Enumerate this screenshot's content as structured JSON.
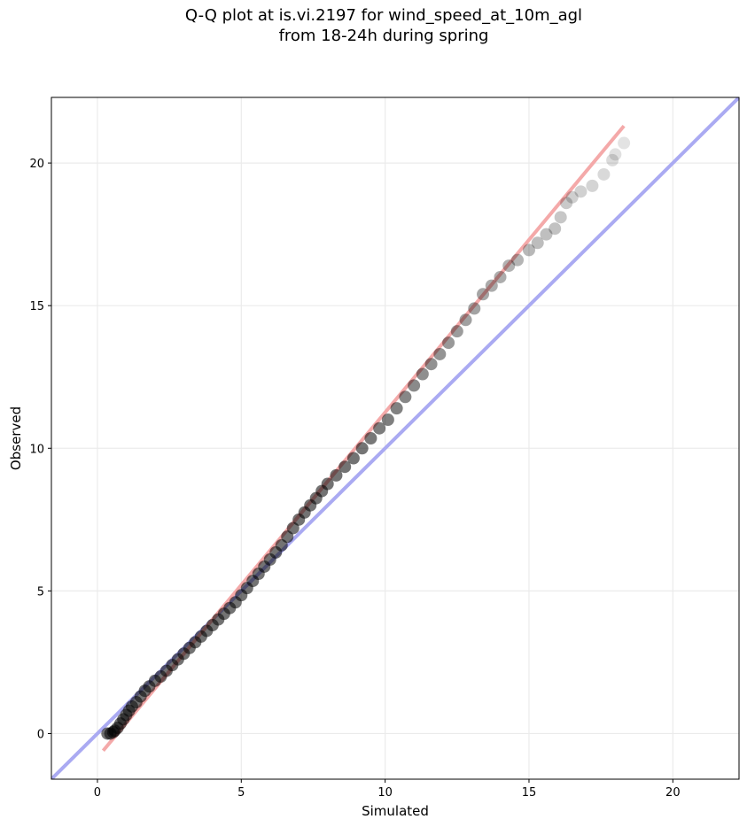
{
  "chart_data": {
    "type": "scatter",
    "title_line1": "Q-Q plot at is.vi.2197 for wind_speed_at_10m_agl",
    "title_line2": "from 18-24h during spring",
    "xlabel": "Simulated",
    "ylabel": "Observed",
    "xlim": [
      -1.6,
      22.3
    ],
    "ylim": [
      -1.6,
      22.3
    ],
    "xticks": [
      0,
      5,
      10,
      15,
      20
    ],
    "yticks": [
      0,
      5,
      10,
      15,
      20
    ],
    "grid": true,
    "reference_line": {
      "points": [
        [
          -1.6,
          -1.6
        ],
        [
          22.3,
          22.3
        ]
      ],
      "color": "#aaaaf2"
    },
    "fit_line": {
      "points": [
        [
          0.2,
          -0.6
        ],
        [
          18.3,
          21.3
        ]
      ],
      "color": "#f4a9a9"
    },
    "marker_color": "#000000",
    "quantiles": [
      [
        0.35,
        0.0
      ],
      [
        0.45,
        0.0
      ],
      [
        0.55,
        0.05
      ],
      [
        0.6,
        0.1
      ],
      [
        0.7,
        0.2
      ],
      [
        0.8,
        0.35
      ],
      [
        0.9,
        0.5
      ],
      [
        1.0,
        0.65
      ],
      [
        1.1,
        0.8
      ],
      [
        1.2,
        0.95
      ],
      [
        1.35,
        1.1
      ],
      [
        1.5,
        1.3
      ],
      [
        1.65,
        1.5
      ],
      [
        1.8,
        1.65
      ],
      [
        2.0,
        1.85
      ],
      [
        2.2,
        2.0
      ],
      [
        2.4,
        2.2
      ],
      [
        2.6,
        2.4
      ],
      [
        2.8,
        2.6
      ],
      [
        3.0,
        2.8
      ],
      [
        3.2,
        3.0
      ],
      [
        3.4,
        3.2
      ],
      [
        3.6,
        3.4
      ],
      [
        3.8,
        3.6
      ],
      [
        4.0,
        3.8
      ],
      [
        4.2,
        4.0
      ],
      [
        4.4,
        4.2
      ],
      [
        4.6,
        4.4
      ],
      [
        4.8,
        4.6
      ],
      [
        5.0,
        4.85
      ],
      [
        5.2,
        5.1
      ],
      [
        5.4,
        5.35
      ],
      [
        5.6,
        5.6
      ],
      [
        5.8,
        5.85
      ],
      [
        6.0,
        6.1
      ],
      [
        6.2,
        6.35
      ],
      [
        6.4,
        6.6
      ],
      [
        6.6,
        6.9
      ],
      [
        6.8,
        7.2
      ],
      [
        7.0,
        7.5
      ],
      [
        7.2,
        7.75
      ],
      [
        7.4,
        8.0
      ],
      [
        7.6,
        8.25
      ],
      [
        7.8,
        8.5
      ],
      [
        8.0,
        8.75
      ],
      [
        8.3,
        9.05
      ],
      [
        8.6,
        9.35
      ],
      [
        8.9,
        9.65
      ],
      [
        9.2,
        10.0
      ],
      [
        9.5,
        10.35
      ],
      [
        9.8,
        10.7
      ],
      [
        10.1,
        11.0
      ],
      [
        10.4,
        11.4
      ],
      [
        10.7,
        11.8
      ],
      [
        11.0,
        12.2
      ],
      [
        11.3,
        12.6
      ],
      [
        11.6,
        12.95
      ],
      [
        11.9,
        13.3
      ],
      [
        12.2,
        13.7
      ],
      [
        12.5,
        14.1
      ],
      [
        12.8,
        14.5
      ],
      [
        13.1,
        14.9
      ],
      [
        13.4,
        15.4
      ],
      [
        13.7,
        15.7
      ],
      [
        14.0,
        16.0
      ],
      [
        14.3,
        16.4
      ],
      [
        14.6,
        16.6
      ],
      [
        15.0,
        16.95
      ],
      [
        15.3,
        17.2
      ],
      [
        15.6,
        17.5
      ],
      [
        15.9,
        17.7
      ],
      [
        16.1,
        18.1
      ],
      [
        16.3,
        18.6
      ],
      [
        16.5,
        18.8
      ],
      [
        16.8,
        19.0
      ],
      [
        17.2,
        19.2
      ],
      [
        17.6,
        19.6
      ],
      [
        17.9,
        20.1
      ],
      [
        18.0,
        20.3
      ],
      [
        18.3,
        20.7
      ]
    ]
  }
}
